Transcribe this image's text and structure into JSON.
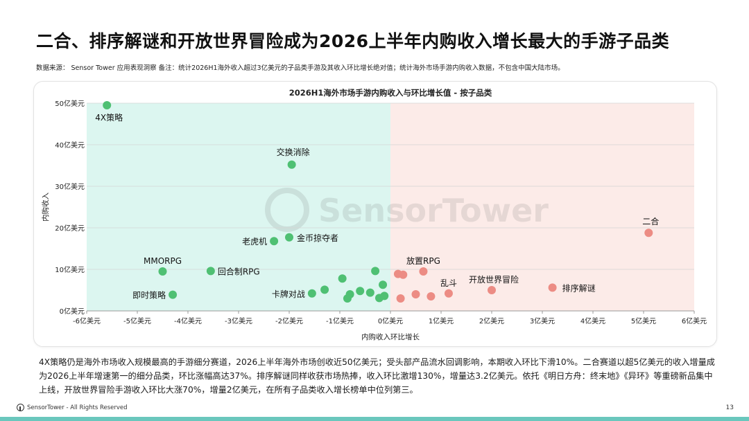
{
  "page": {
    "title": "二合、排序解谜和开放世界冒险成为2026上半年内购收入增长最大的手游子品类",
    "source_note": "数据来源：  Sensor Tower 应用表现洞察  备注：统计2026H1海外收入超过3亿美元的子品类手游及其收入环比增长绝对值；统计海外市场手游内购收入数据，不包含中国大陆市场。",
    "summary": "4X策略仍是海外市场收入规模最高的手游细分赛道，2026上半年海外市场创收近50亿美元；受头部产品流水回调影响，本期收入环比下滑10%。二合赛道以超5亿美元的收入增量成为2026上半年增速第一的细分品类，环比涨幅高达37%。排序解谜同样收获市场热捧，收入环比激增130%，增量达3.2亿美元。依托《明日方舟：终末地》《异环》等重磅新品集中上线，开放世界冒险手游收入环比大涨70%，增量2亿美元，在所有子品类收入增长榜单中位列第三。",
    "footer_brand": "SensorTower - All Rights Reserved",
    "page_number": "13",
    "watermark": "SensorTower"
  },
  "colors": {
    "negative_region": "#dcf6f0",
    "positive_region": "#fcebe8",
    "negative_point": "#4fc073",
    "positive_point": "#ec8c84",
    "bottom_bar": "#6ac7bd"
  },
  "chart_data": {
    "type": "scatter",
    "title": "2026H1海外市场手游内购收入与环比增长值 - 按子品类",
    "xlabel": "内购收入环比增长",
    "ylabel": "内购收入",
    "xlim": [
      -6,
      6
    ],
    "ylim": [
      0,
      50
    ],
    "x_unit": "亿美元",
    "y_unit": "亿美元",
    "x_ticks": [
      -6,
      -5,
      -4,
      -3,
      -2,
      -1,
      0,
      1,
      2,
      3,
      4,
      5,
      6
    ],
    "x_tick_labels": [
      "-6亿美元",
      "-5亿美元",
      "-4亿美元",
      "-3亿美元",
      "-2亿美元",
      "-1亿美元",
      "0亿美元",
      "1亿美元",
      "2亿美元",
      "3亿美元",
      "4亿美元",
      "5亿美元",
      "6亿美元"
    ],
    "y_ticks": [
      0,
      10,
      20,
      30,
      40,
      50
    ],
    "y_tick_labels": [
      "0亿美元",
      "10亿美元",
      "20亿美元",
      "30亿美元",
      "40亿美元",
      "50亿美元"
    ],
    "grid": true,
    "points": [
      {
        "label": "4X策略",
        "x": -5.6,
        "y": 49.5
      },
      {
        "label": "交换消除",
        "x": -1.95,
        "y": 35.2
      },
      {
        "label": "老虎机",
        "x": -2.3,
        "y": 16.8
      },
      {
        "label": "金币掠夺者",
        "x": -2.0,
        "y": 17.7
      },
      {
        "label": "MMORPG",
        "x": -4.5,
        "y": 9.5
      },
      {
        "label": "回合制RPG",
        "x": -3.55,
        "y": 9.6
      },
      {
        "label": "即时策略",
        "x": -4.3,
        "y": 3.9
      },
      {
        "label": "卡牌对战",
        "x": -1.55,
        "y": 4.2
      },
      {
        "label": "",
        "x": -1.3,
        "y": 5.1
      },
      {
        "label": "",
        "x": -0.95,
        "y": 7.8
      },
      {
        "label": "",
        "x": -0.85,
        "y": 3.0
      },
      {
        "label": "",
        "x": -0.8,
        "y": 4.0
      },
      {
        "label": "",
        "x": -0.6,
        "y": 4.8
      },
      {
        "label": "",
        "x": -0.4,
        "y": 4.4
      },
      {
        "label": "",
        "x": -0.3,
        "y": 9.6
      },
      {
        "label": "",
        "x": -0.22,
        "y": 3.1
      },
      {
        "label": "",
        "x": -0.15,
        "y": 6.3
      },
      {
        "label": "",
        "x": -0.12,
        "y": 3.6
      },
      {
        "label": "",
        "x": 0.15,
        "y": 8.9
      },
      {
        "label": "",
        "x": 0.25,
        "y": 8.7
      },
      {
        "label": "",
        "x": 0.2,
        "y": 3.0
      },
      {
        "label": "",
        "x": 0.5,
        "y": 4.0
      },
      {
        "label": "放置RPG",
        "x": 0.65,
        "y": 9.5
      },
      {
        "label": "",
        "x": 0.8,
        "y": 3.5
      },
      {
        "label": "乱斗",
        "x": 1.15,
        "y": 4.2
      },
      {
        "label": "开放世界冒险",
        "x": 2.0,
        "y": 5.0
      },
      {
        "label": "排序解谜",
        "x": 3.2,
        "y": 5.6
      },
      {
        "label": "二合",
        "x": 5.1,
        "y": 18.8
      }
    ]
  }
}
